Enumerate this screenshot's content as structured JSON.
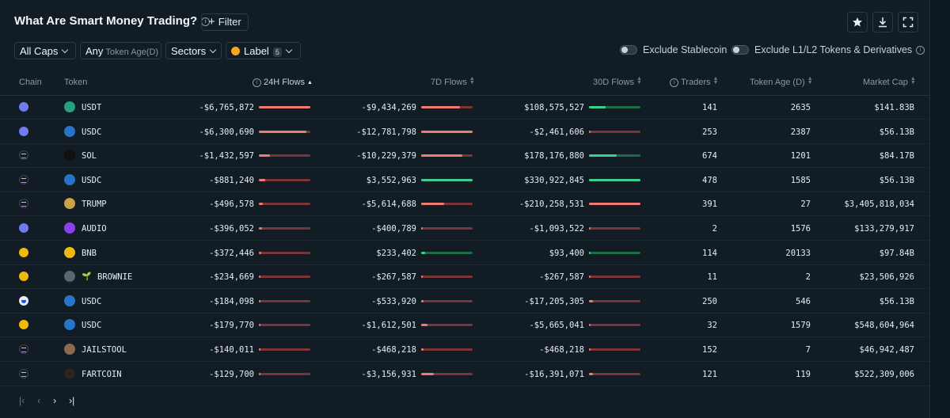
{
  "header": {
    "title": "What Are Smart Money Trading?",
    "filter_label": "Filter"
  },
  "filters": {
    "caps": "All Caps",
    "any": "Any",
    "token_age": "Token Age(D)",
    "sectors": "Sectors",
    "label": "Label",
    "label_count": "5",
    "exclude_stablecoin": "Exclude Stablecoin",
    "exclude_l1l2": "Exclude L1/L2 Tokens & Derivatives"
  },
  "columns": {
    "chain": "Chain",
    "token": "Token",
    "flows_24h": "24H Flows",
    "flows_7d": "7D Flows",
    "flows_30d": "30D Flows",
    "traders": "Traders",
    "token_age": "Token Age (D)",
    "market_cap": "Market Cap"
  },
  "colors": {
    "neg_strong": "#f07a74",
    "neg_track": "#7a3636",
    "pos_strong": "#3ecf8e",
    "pos_track": "#1f6b46"
  },
  "rows": [
    {
      "chain": "eth",
      "token": "USDT",
      "token_icon": "tether-icon",
      "icon_color": "#26a17b",
      "f24": "-$6,765,872",
      "f24_sign": "neg",
      "f24_level": 1.0,
      "f7": "-$9,434,269",
      "f7_sign": "neg",
      "f7_level": 0.75,
      "f30": "$108,575,527",
      "f30_sign": "pos",
      "f30_level": 0.33,
      "traders": "141",
      "age": "2635",
      "mcap": "$141.83B"
    },
    {
      "chain": "eth",
      "token": "USDC",
      "token_icon": "usdc-icon",
      "icon_color": "#2775ca",
      "f24": "-$6,300,690",
      "f24_sign": "neg",
      "f24_level": 0.93,
      "f7": "-$12,781,798",
      "f7_sign": "neg",
      "f7_level": 1.0,
      "f30": "-$2,461,606",
      "f30_sign": "neg",
      "f30_level": 0.01,
      "traders": "253",
      "age": "2387",
      "mcap": "$56.13B"
    },
    {
      "chain": "sol",
      "token": "SOL",
      "token_icon": "solana-icon",
      "icon_color": "#111111",
      "f24": "-$1,432,597",
      "f24_sign": "neg",
      "f24_level": 0.21,
      "f7": "-$10,229,379",
      "f7_sign": "neg",
      "f7_level": 0.8,
      "f30": "$178,176,880",
      "f30_sign": "pos",
      "f30_level": 0.54,
      "traders": "674",
      "age": "1201",
      "mcap": "$84.17B"
    },
    {
      "chain": "sol",
      "token": "USDC",
      "token_icon": "usdc-icon",
      "icon_color": "#2775ca",
      "f24": "-$881,240",
      "f24_sign": "neg",
      "f24_level": 0.13,
      "f7": "$3,552,963",
      "f7_sign": "pos",
      "f7_level": 1.0,
      "f30": "$330,922,845",
      "f30_sign": "pos",
      "f30_level": 1.0,
      "traders": "478",
      "age": "1585",
      "mcap": "$56.13B"
    },
    {
      "chain": "sol",
      "token": "TRUMP",
      "token_icon": "trump-icon",
      "icon_color": "#c9a24a",
      "f24": "-$496,578",
      "f24_sign": "neg",
      "f24_level": 0.07,
      "f7": "-$5,614,688",
      "f7_sign": "neg",
      "f7_level": 0.44,
      "f30": "-$210,258,531",
      "f30_sign": "neg",
      "f30_level": 1.0,
      "traders": "391",
      "age": "27",
      "mcap": "$3,405,818,034"
    },
    {
      "chain": "eth",
      "token": "AUDIO",
      "token_icon": "audius-icon",
      "icon_color": "#8a3ff0",
      "f24": "-$396,052",
      "f24_sign": "neg",
      "f24_level": 0.06,
      "f7": "-$400,789",
      "f7_sign": "neg",
      "f7_level": 0.03,
      "f30": "-$1,093,522",
      "f30_sign": "neg",
      "f30_level": 0.01,
      "traders": "2",
      "age": "1576",
      "mcap": "$133,279,917"
    },
    {
      "chain": "bsc",
      "token": "BNB",
      "token_icon": "bnb-icon",
      "icon_color": "#f0b90b",
      "f24": "-$372,446",
      "f24_sign": "neg",
      "f24_level": 0.05,
      "f7": "$233,402",
      "f7_sign": "pos",
      "f7_level": 0.07,
      "f30": "$93,400",
      "f30_sign": "pos",
      "f30_level": 0.01,
      "traders": "114",
      "age": "20133",
      "mcap": "$97.84B"
    },
    {
      "chain": "bsc",
      "token": "BROWNIE",
      "token_icon": "brownie-icon",
      "icon_color": "#5a6470",
      "emoji": "🌱",
      "f24": "-$234,669",
      "f24_sign": "neg",
      "f24_level": 0.03,
      "f7": "-$267,587",
      "f7_sign": "neg",
      "f7_level": 0.02,
      "f30": "-$267,587",
      "f30_sign": "neg",
      "f30_level": 0.01,
      "traders": "11",
      "age": "2",
      "mcap": "$23,506,926"
    },
    {
      "chain": "base",
      "token": "USDC",
      "token_icon": "usdc-icon",
      "icon_color": "#2775ca",
      "f24": "-$184,098",
      "f24_sign": "neg",
      "f24_level": 0.03,
      "f7": "-$533,920",
      "f7_sign": "neg",
      "f7_level": 0.04,
      "f30": "-$17,205,305",
      "f30_sign": "neg",
      "f30_level": 0.08,
      "traders": "250",
      "age": "546",
      "mcap": "$56.13B"
    },
    {
      "chain": "bsc",
      "token": "USDC",
      "token_icon": "usdc-icon",
      "icon_color": "#2775ca",
      "f24": "-$179,770",
      "f24_sign": "neg",
      "f24_level": 0.03,
      "f7": "-$1,612,501",
      "f7_sign": "neg",
      "f7_level": 0.13,
      "f30": "-$5,665,041",
      "f30_sign": "neg",
      "f30_level": 0.03,
      "traders": "32",
      "age": "1579",
      "mcap": "$548,604,964"
    },
    {
      "chain": "sol",
      "token": "JAILSTOOL",
      "token_icon": "jailstool-icon",
      "icon_color": "#8a6a50",
      "f24": "-$140,011",
      "f24_sign": "neg",
      "f24_level": 0.02,
      "f7": "-$468,218",
      "f7_sign": "neg",
      "f7_level": 0.04,
      "f30": "-$468,218",
      "f30_sign": "neg",
      "f30_level": 0.01,
      "traders": "152",
      "age": "7",
      "mcap": "$46,942,487"
    },
    {
      "chain": "sol",
      "token": "FARTCOIN",
      "token_icon": "fartcoin-icon",
      "icon_color": "#2a2520",
      "f24": "-$129,700",
      "f24_sign": "neg",
      "f24_level": 0.02,
      "f7": "-$3,156,931",
      "f7_sign": "neg",
      "f7_level": 0.25,
      "f30": "-$16,391,071",
      "f30_sign": "neg",
      "f30_level": 0.08,
      "traders": "121",
      "age": "119",
      "mcap": "$522,309,006"
    }
  ],
  "pager": {
    "first": "|‹",
    "prev": "‹",
    "next": "›",
    "last": "›|"
  }
}
